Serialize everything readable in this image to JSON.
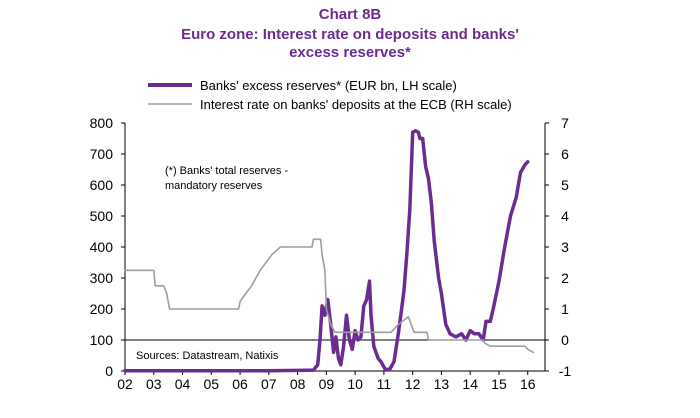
{
  "chart_data": {
    "type": "line",
    "chart_label": "Chart 8B",
    "title_line1": "Euro zone: Interest rate on deposits and banks'",
    "title_line2": "excess reserves*",
    "left_axis": {
      "ylim": [
        0,
        800
      ],
      "ticks": [
        "0",
        "100",
        "200",
        "300",
        "400",
        "500",
        "600",
        "700",
        "800"
      ]
    },
    "right_axis": {
      "ylim": [
        -1,
        7
      ],
      "ticks": [
        "-1",
        "0",
        "1",
        "2",
        "3",
        "4",
        "5",
        "6",
        "7"
      ]
    },
    "x_axis": {
      "xlim": [
        2002,
        2016.6
      ],
      "ticks": [
        "02",
        "03",
        "04",
        "05",
        "06",
        "07",
        "08",
        "09",
        "10",
        "11",
        "12",
        "13",
        "14",
        "15",
        "16"
      ]
    },
    "annotation_line1": "(*) Banks' total reserves -",
    "annotation_line2": "mandatory reserves",
    "source": "Sources: Datastream, Natixis",
    "legend_position": "top",
    "series": [
      {
        "name": "Banks' excess reserves* (EUR bn, LH scale)",
        "axis": "left",
        "color": "#6B2C91",
        "points": [
          [
            2002.0,
            1
          ],
          [
            2003.0,
            1
          ],
          [
            2004.0,
            1
          ],
          [
            2005.0,
            1
          ],
          [
            2006.0,
            1
          ],
          [
            2007.0,
            1
          ],
          [
            2008.0,
            2
          ],
          [
            2008.55,
            3
          ],
          [
            2008.7,
            20
          ],
          [
            2008.78,
            100
          ],
          [
            2008.85,
            210
          ],
          [
            2008.95,
            180
          ],
          [
            2009.05,
            230
          ],
          [
            2009.15,
            150
          ],
          [
            2009.25,
            60
          ],
          [
            2009.33,
            110
          ],
          [
            2009.42,
            40
          ],
          [
            2009.5,
            20
          ],
          [
            2009.6,
            80
          ],
          [
            2009.7,
            180
          ],
          [
            2009.8,
            100
          ],
          [
            2009.9,
            70
          ],
          [
            2010.0,
            130
          ],
          [
            2010.1,
            100
          ],
          [
            2010.2,
            110
          ],
          [
            2010.3,
            210
          ],
          [
            2010.4,
            230
          ],
          [
            2010.5,
            290
          ],
          [
            2010.55,
            180
          ],
          [
            2010.65,
            80
          ],
          [
            2010.8,
            40
          ],
          [
            2010.9,
            30
          ],
          [
            2011.05,
            5
          ],
          [
            2011.2,
            5
          ],
          [
            2011.35,
            30
          ],
          [
            2011.5,
            120
          ],
          [
            2011.6,
            190
          ],
          [
            2011.7,
            260
          ],
          [
            2011.8,
            380
          ],
          [
            2011.9,
            520
          ],
          [
            2012.0,
            770
          ],
          [
            2012.1,
            775
          ],
          [
            2012.2,
            770
          ],
          [
            2012.25,
            750
          ],
          [
            2012.35,
            750
          ],
          [
            2012.45,
            660
          ],
          [
            2012.55,
            620
          ],
          [
            2012.65,
            540
          ],
          [
            2012.75,
            420
          ],
          [
            2012.9,
            300
          ],
          [
            2013.0,
            250
          ],
          [
            2013.15,
            150
          ],
          [
            2013.3,
            120
          ],
          [
            2013.5,
            110
          ],
          [
            2013.7,
            120
          ],
          [
            2013.85,
            100
          ],
          [
            2014.0,
            130
          ],
          [
            2014.15,
            120
          ],
          [
            2014.3,
            120
          ],
          [
            2014.45,
            100
          ],
          [
            2014.55,
            160
          ],
          [
            2014.7,
            160
          ],
          [
            2014.8,
            200
          ],
          [
            2015.0,
            290
          ],
          [
            2015.2,
            400
          ],
          [
            2015.4,
            500
          ],
          [
            2015.6,
            560
          ],
          [
            2015.75,
            640
          ],
          [
            2015.9,
            665
          ],
          [
            2016.0,
            675
          ]
        ]
      },
      {
        "name": "Interest rate on banks' deposits at the ECB (RH scale)",
        "axis": "right",
        "color": "#9E9E9E",
        "points": [
          [
            2002.0,
            2.25
          ],
          [
            2003.0,
            2.25
          ],
          [
            2003.05,
            1.75
          ],
          [
            2003.35,
            1.75
          ],
          [
            2003.45,
            1.5
          ],
          [
            2003.55,
            1.0
          ],
          [
            2005.95,
            1.0
          ],
          [
            2006.0,
            1.25
          ],
          [
            2006.2,
            1.5
          ],
          [
            2006.4,
            1.75
          ],
          [
            2006.55,
            2.0
          ],
          [
            2006.7,
            2.25
          ],
          [
            2006.9,
            2.5
          ],
          [
            2007.1,
            2.75
          ],
          [
            2007.4,
            3.0
          ],
          [
            2008.5,
            3.0
          ],
          [
            2008.55,
            3.25
          ],
          [
            2008.8,
            3.25
          ],
          [
            2008.85,
            2.75
          ],
          [
            2008.95,
            2.25
          ],
          [
            2009.0,
            1.0
          ],
          [
            2009.15,
            0.5
          ],
          [
            2009.3,
            0.25
          ],
          [
            2011.25,
            0.25
          ],
          [
            2011.5,
            0.5
          ],
          [
            2011.85,
            0.75
          ],
          [
            2011.95,
            0.5
          ],
          [
            2012.05,
            0.25
          ],
          [
            2012.5,
            0.25
          ],
          [
            2012.55,
            0.0
          ],
          [
            2014.45,
            0.0
          ],
          [
            2014.5,
            -0.1
          ],
          [
            2014.7,
            -0.2
          ],
          [
            2015.9,
            -0.2
          ],
          [
            2016.0,
            -0.3
          ],
          [
            2016.2,
            -0.4
          ]
        ]
      }
    ]
  }
}
